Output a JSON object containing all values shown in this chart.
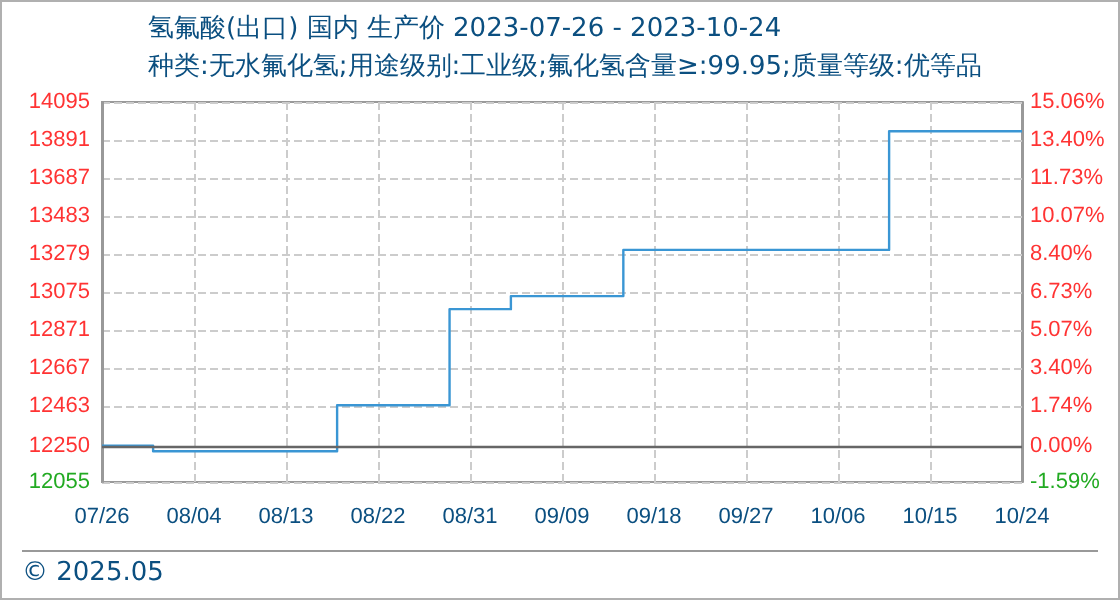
{
  "chart_data": {
    "type": "step",
    "title": "氢氟酸(出口) 国内 生产价 2023-07-26 - 2023-10-24",
    "subtitle": "种类:无水氟化氢;用途级别:工业级;氟化氢含量≥:99.95;质量等级:优等品",
    "annotations": [
      "© 2025.05"
    ],
    "x": [
      "2023-07-26",
      "2023-07-30",
      "2023-07-31",
      "2023-08-16",
      "2023-08-18",
      "2023-08-28",
      "2023-08-29",
      "2023-09-03",
      "2023-09-04",
      "2023-09-14",
      "2023-09-15",
      "2023-10-09",
      "2023-10-11",
      "2023-10-24"
    ],
    "series": [
      {
        "color": "#3a96d4",
        "values": [
          12250,
          12250,
          12220,
          12220,
          12467,
          12467,
          12983,
          12983,
          13053,
          13053,
          13301,
          13301,
          13938,
          13938
        ]
      }
    ],
    "xlim": [
      "2023-07-26",
      "2023-10-24"
    ],
    "xticks": [
      {
        "value": "2023-07-26",
        "label": "07/26"
      },
      {
        "value": "2023-08-04",
        "label": "08/04"
      },
      {
        "value": "2023-08-13",
        "label": "08/13"
      },
      {
        "value": "2023-08-22",
        "label": "08/22"
      },
      {
        "value": "2023-08-31",
        "label": "08/31"
      },
      {
        "value": "2023-09-09",
        "label": "09/09"
      },
      {
        "value": "2023-09-18",
        "label": "09/18"
      },
      {
        "value": "2023-09-27",
        "label": "09/27"
      },
      {
        "value": "2023-10-06",
        "label": "10/06"
      },
      {
        "value": "2023-10-15",
        "label": "10/15"
      },
      {
        "value": "2023-10-24",
        "label": "10/24"
      }
    ],
    "ylim": [
      12055,
      14095
    ],
    "yticks": [
      12055,
      12250,
      12463,
      12667,
      12871,
      13075,
      13279,
      13483,
      13687,
      13891,
      14095
    ],
    "y2lim": [
      -1.59,
      15.06
    ],
    "y2ticks": [
      {
        "value": -1.59,
        "label": "-1.59%"
      },
      {
        "value": 0,
        "label": "0.00%"
      },
      {
        "value": 1.74,
        "label": "1.74%"
      },
      {
        "value": 3.4,
        "label": "3.40%"
      },
      {
        "value": 5.07,
        "label": "5.07%"
      },
      {
        "value": 6.73,
        "label": "6.73%"
      },
      {
        "value": 8.4,
        "label": "8.40%"
      },
      {
        "value": 10.07,
        "label": "10.07%"
      },
      {
        "value": 11.73,
        "label": "11.73%"
      },
      {
        "value": 13.4,
        "label": "13.40%"
      },
      {
        "value": 15.06,
        "label": "15.06%"
      }
    ],
    "ref_lines": [
      {
        "axis": "y",
        "value": 12250,
        "color": "#666666"
      }
    ],
    "grid": true,
    "line_style": "solid",
    "marker": "none"
  }
}
